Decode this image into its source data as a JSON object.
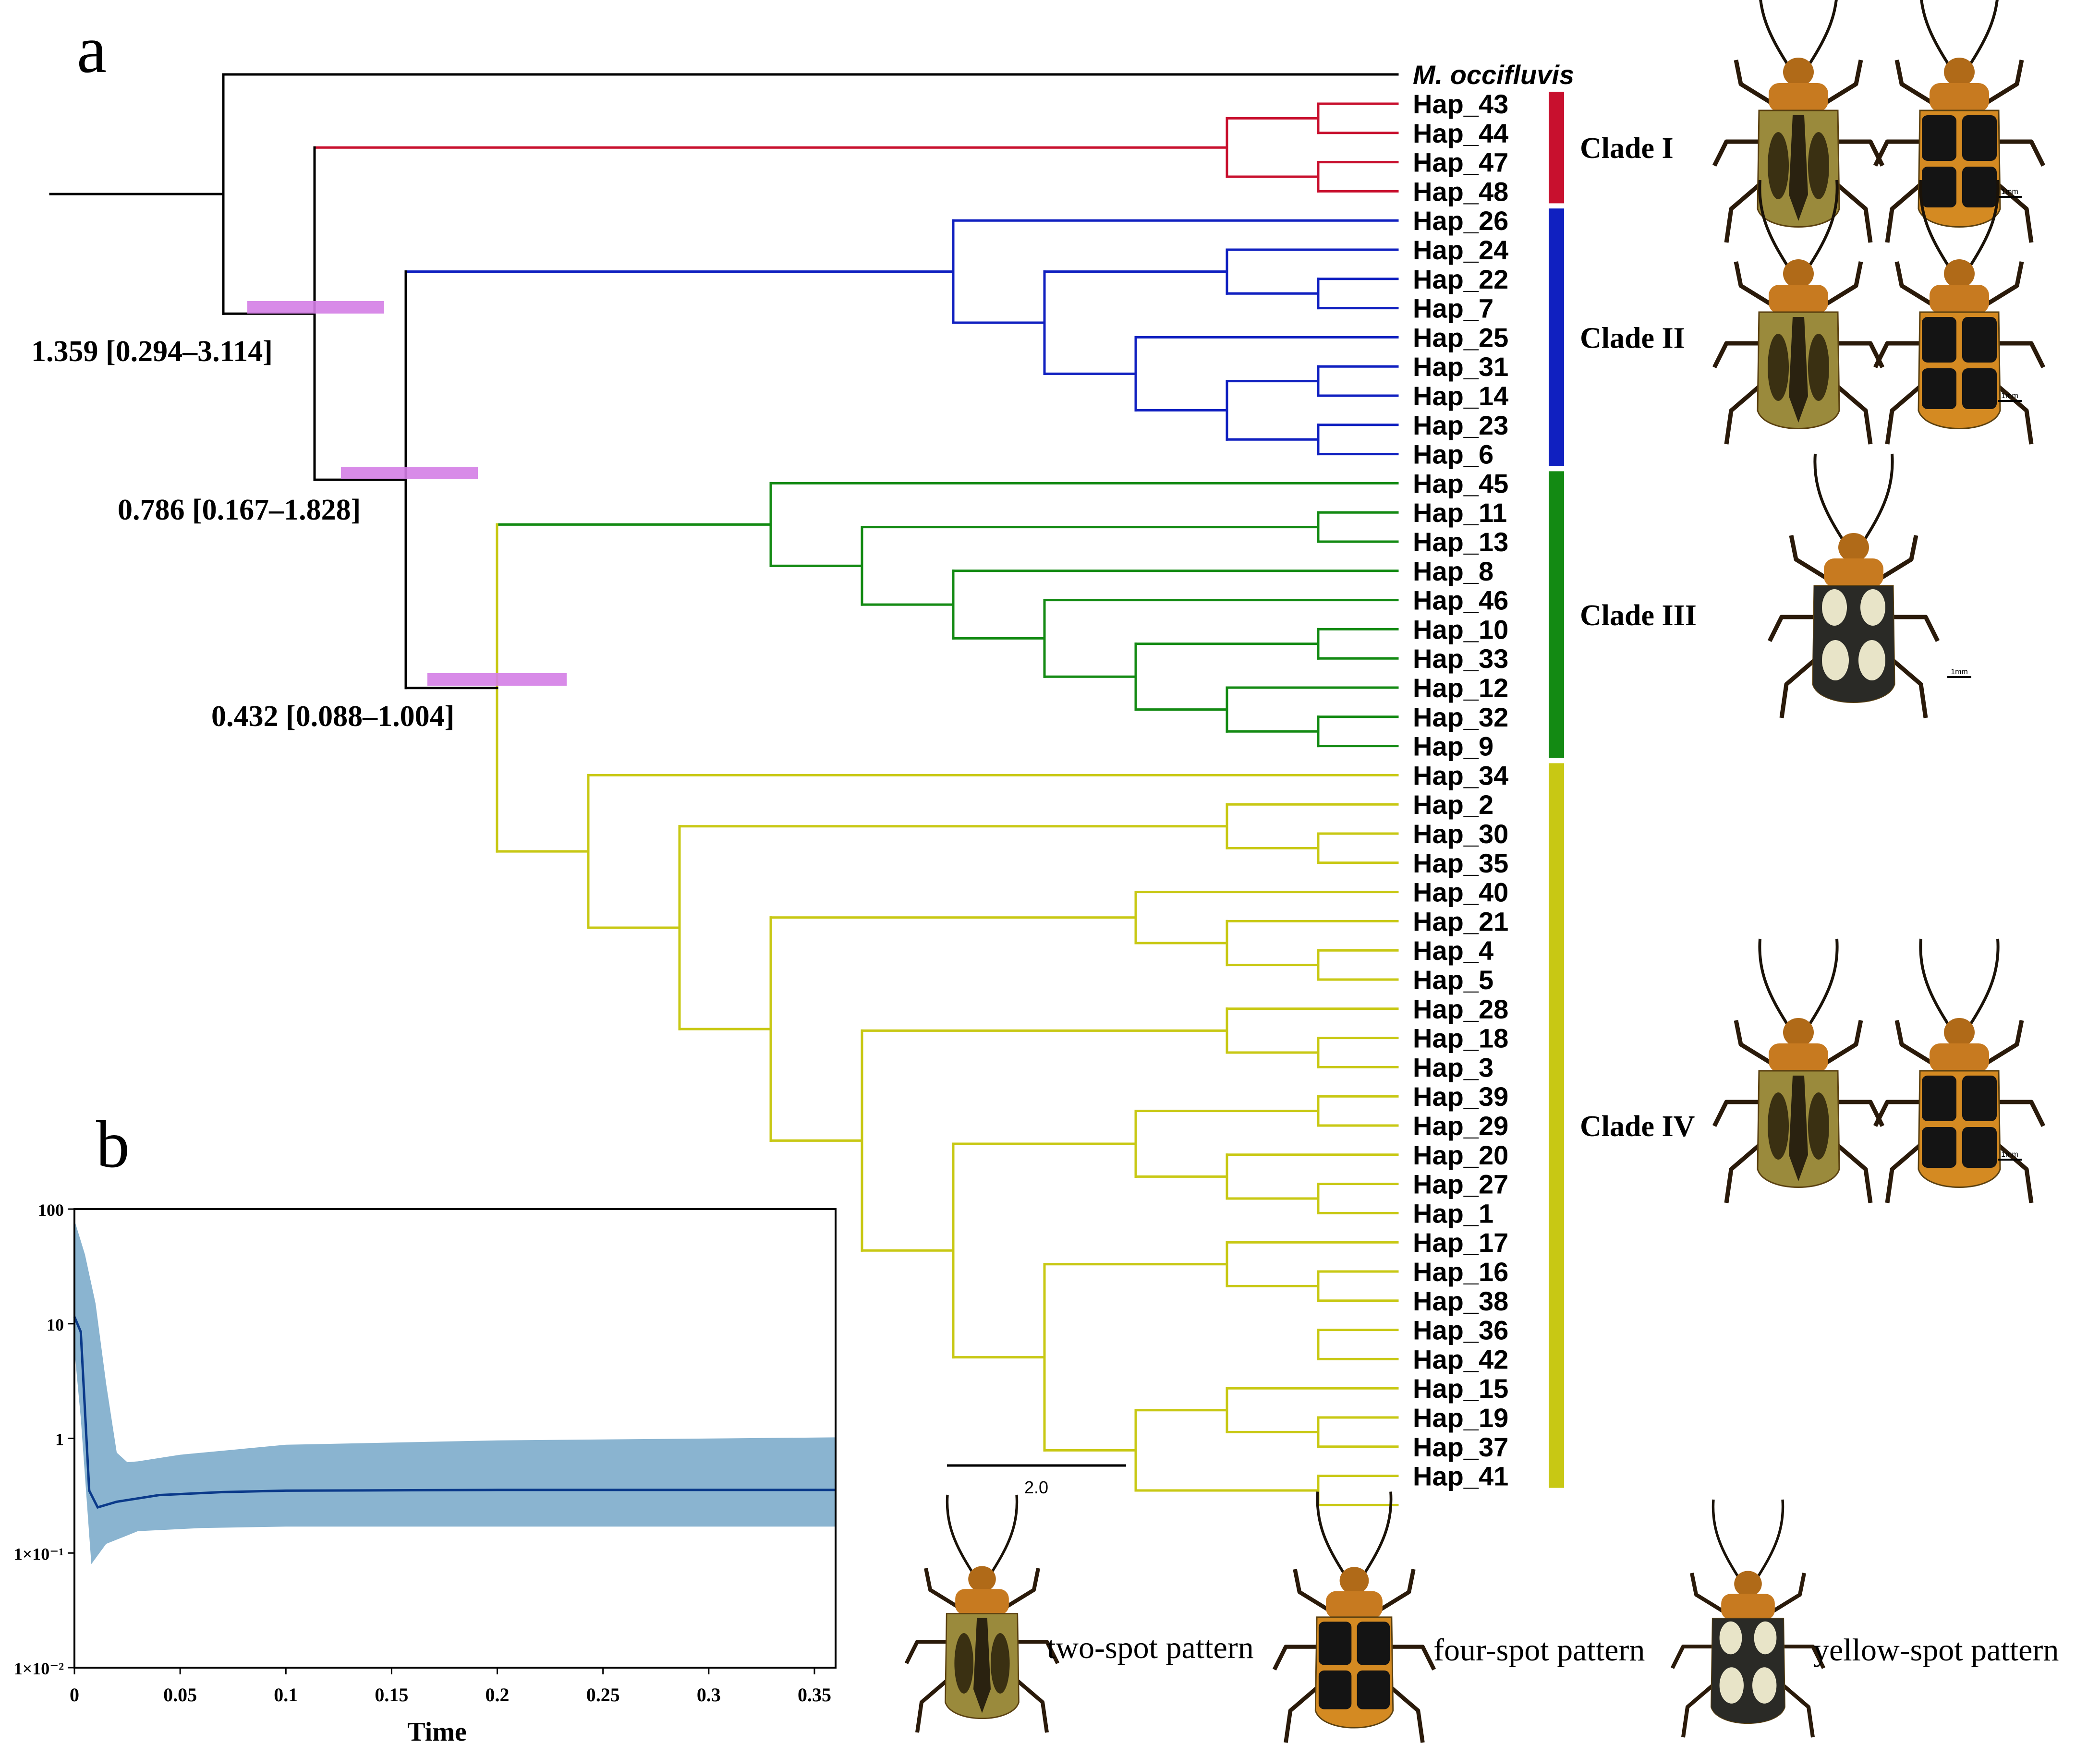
{
  "panel_labels": {
    "a": "a",
    "b": "b"
  },
  "outgroup": "M. occifluvis",
  "colors": {
    "clade_I": "#c8102e",
    "clade_II": "#1020c0",
    "clade_III": "#138a13",
    "clade_IV": "#c8c814",
    "root": "#000000",
    "hpd_bar": "#d47ee6",
    "band_fill": "#8ab4d0",
    "median_line": "#0b3a8a"
  },
  "clades": [
    {
      "label": "Clade I",
      "color": "#c8102e",
      "tips": [
        "Hap_43",
        "Hap_44",
        "Hap_47",
        "Hap_48"
      ]
    },
    {
      "label": "Clade II",
      "color": "#1020c0",
      "tips": [
        "Hap_26",
        "Hap_24",
        "Hap_22",
        "Hap_7",
        "Hap_25",
        "Hap_31",
        "Hap_14",
        "Hap_23",
        "Hap_6"
      ]
    },
    {
      "label": "Clade III",
      "color": "#138a13",
      "tips": [
        "Hap_45",
        "Hap_11",
        "Hap_13",
        "Hap_8",
        "Hap_46",
        "Hap_10",
        "Hap_33",
        "Hap_12",
        "Hap_32",
        "Hap_9"
      ]
    },
    {
      "label": "Clade IV",
      "color": "#c8c814",
      "tips": [
        "Hap_34",
        "Hap_2",
        "Hap_30",
        "Hap_35",
        "Hap_40",
        "Hap_21",
        "Hap_4",
        "Hap_5",
        "Hap_28",
        "Hap_18",
        "Hap_3",
        "Hap_39",
        "Hap_29",
        "Hap_20",
        "Hap_27",
        "Hap_1",
        "Hap_17",
        "Hap_16",
        "Hap_38",
        "Hap_36",
        "Hap_42",
        "Hap_15",
        "Hap_19",
        "Hap_37",
        "Hap_41"
      ]
    }
  ],
  "node_ages": [
    {
      "text": "1.359 [0.294–3.114]"
    },
    {
      "text": "0.786 [0.167–1.828]"
    },
    {
      "text": "0.432 [0.088–1.004]"
    }
  ],
  "scale_bar": {
    "label": "2.0"
  },
  "specimen_scale_label": "1mm",
  "legend": [
    "two-spot pattern",
    "four-spot pattern",
    "yellow-spot pattern"
  ],
  "chart_data": {
    "type": "area",
    "title": "",
    "xlabel": "Time",
    "ylabel": "",
    "xscale": "linear",
    "yscale": "log",
    "xlim": [
      0,
      0.36
    ],
    "ylim": [
      0.01,
      100
    ],
    "x_ticks": [
      "0",
      "0.05",
      "0.1",
      "0.15",
      "0.2",
      "0.25",
      "0.3",
      "0.35"
    ],
    "y_ticks": [
      "100",
      "10",
      "1",
      "1×10⁻¹",
      "1×10⁻²"
    ],
    "series": [
      {
        "name": "median",
        "x": [
          0,
          0.003,
          0.007,
          0.011,
          0.02,
          0.04,
          0.07,
          0.1,
          0.2,
          0.36
        ],
        "values": [
          11.5,
          8.5,
          0.35,
          0.25,
          0.28,
          0.32,
          0.34,
          0.35,
          0.355,
          0.355
        ]
      },
      {
        "name": "upper_95_hpd",
        "x": [
          0,
          0.005,
          0.01,
          0.015,
          0.02,
          0.025,
          0.03,
          0.05,
          0.1,
          0.2,
          0.36
        ],
        "values": [
          80,
          40,
          15,
          3,
          0.75,
          0.62,
          0.63,
          0.72,
          0.88,
          0.96,
          1.02
        ]
      },
      {
        "name": "lower_95_hpd",
        "x": [
          0,
          0.003,
          0.008,
          0.015,
          0.03,
          0.06,
          0.1,
          0.2,
          0.36
        ],
        "values": [
          6,
          1.5,
          0.08,
          0.12,
          0.155,
          0.165,
          0.17,
          0.17,
          0.17
        ]
      }
    ]
  }
}
